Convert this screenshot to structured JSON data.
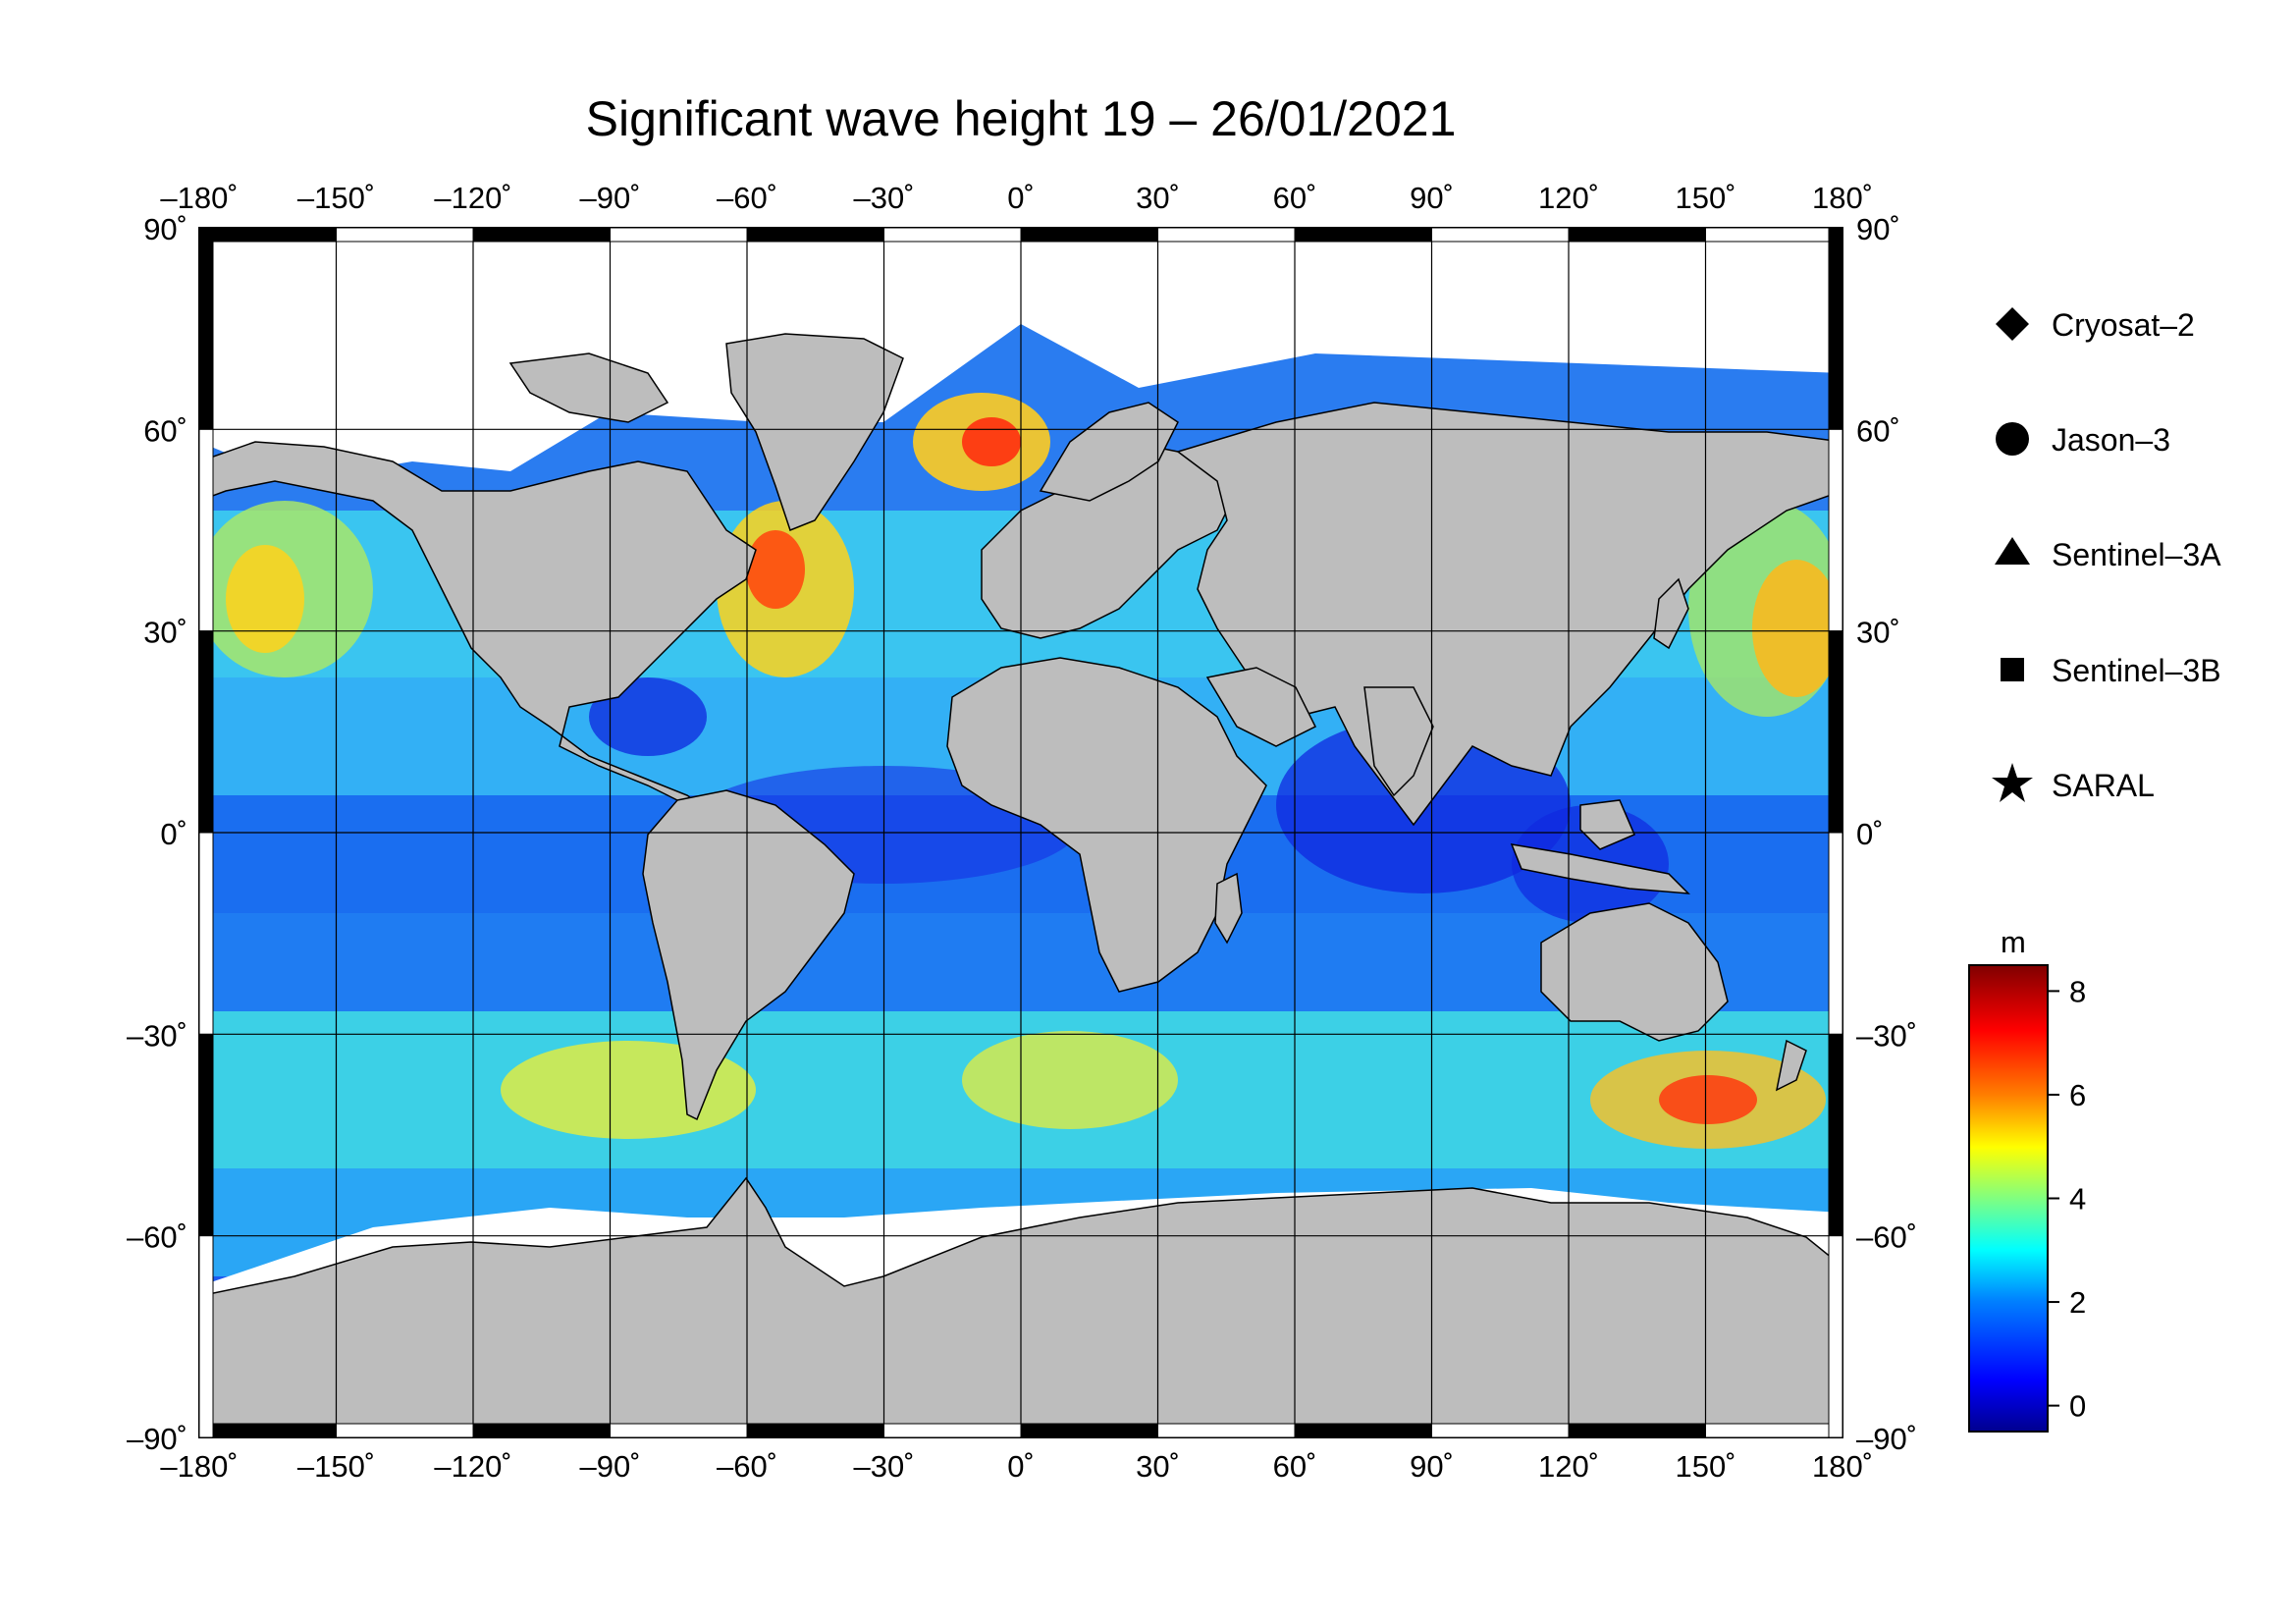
{
  "title": "Significant wave height 19 – 26/01/2021",
  "map": {
    "lon_ticks": [
      "–180˚",
      "–150˚",
      "–120˚",
      "–90˚",
      "–60˚",
      "–30˚",
      "0˚",
      "30˚",
      "60˚",
      "90˚",
      "120˚",
      "150˚",
      "180˚"
    ],
    "lat_ticks": [
      "90˚",
      "60˚",
      "30˚",
      "0˚",
      "–30˚",
      "–60˚",
      "–90˚"
    ],
    "lon_range": [
      -180,
      180
    ],
    "lat_range": [
      -90,
      90
    ],
    "grid": true,
    "land_color": "#bdbdbd"
  },
  "legend": {
    "placement": "right",
    "items": [
      {
        "symbol": "diamond",
        "label": "Cryosat–2"
      },
      {
        "symbol": "circle",
        "label": "Jason–3"
      },
      {
        "symbol": "triangle",
        "label": "Sentinel–3A"
      },
      {
        "symbol": "square",
        "label": "Sentinel–3B"
      },
      {
        "symbol": "star",
        "label": "SARAL"
      }
    ]
  },
  "colorbar": {
    "unit": "m",
    "ticks": [
      "8",
      "6",
      "4",
      "2",
      "0"
    ],
    "range": [
      -0.5,
      8.5
    ],
    "colors": [
      "#00008f",
      "#0000ff",
      "#0080ff",
      "#00ffff",
      "#80ff80",
      "#ffff00",
      "#ff8000",
      "#ff0000",
      "#800000"
    ]
  },
  "chart_data": {
    "type": "heatmap",
    "title": "Significant wave height 19 – 26/01/2021",
    "xlabel": "",
    "ylabel": "",
    "xlim": [
      -180,
      180
    ],
    "ylim": [
      -90,
      90
    ],
    "colorbar_unit": "m",
    "colorbar_range": [
      -0.5,
      8.5
    ]
  }
}
